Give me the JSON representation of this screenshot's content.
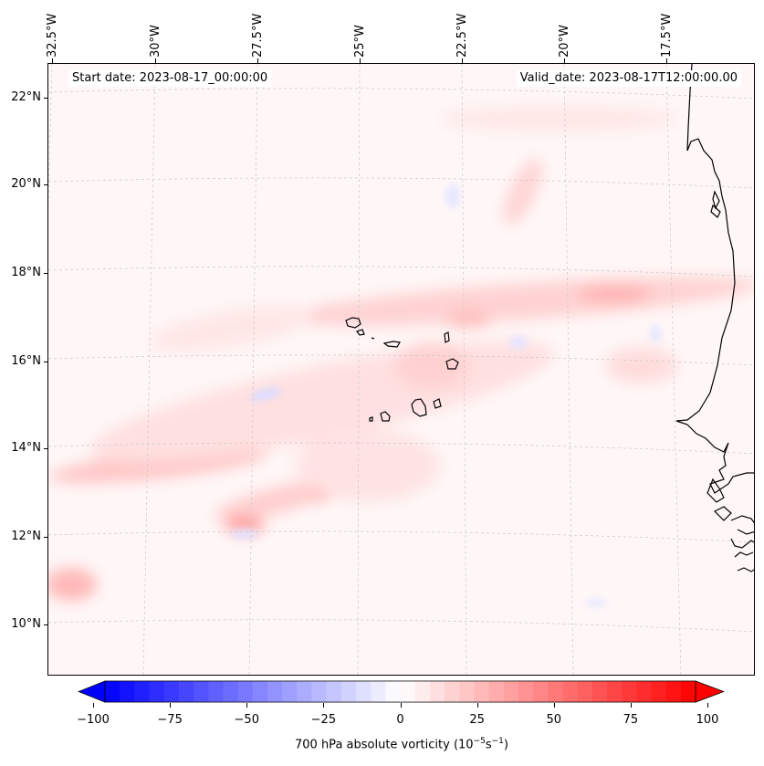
{
  "header": {
    "start_date": "Start date: 2023-08-17_00:00:00",
    "valid_date": "Valid_date: 2023-08-17T12:00:00.00"
  },
  "longitude_labels": [
    "32.5°W",
    "30°W",
    "27.5°W",
    "25°W",
    "22.5°W",
    "20°W",
    "17.5°W"
  ],
  "latitude_labels": [
    "22°N",
    "20°N",
    "18°N",
    "16°N",
    "14°N",
    "12°N",
    "10°N"
  ],
  "colorbar": {
    "ticks": [
      "−100",
      "−75",
      "−50",
      "−25",
      "0",
      "25",
      "50",
      "75",
      "100"
    ],
    "caption_prefix": "700 hPa absolute vorticity (10",
    "caption_exp1": "−5",
    "caption_mid": "s",
    "caption_exp2": "−1",
    "caption_suffix": ")",
    "min": -100,
    "max": 100,
    "colors": {
      "negative": "#0000ff",
      "zero": "#ffffff",
      "positive": "#ff0000"
    }
  },
  "colors": {
    "coastline": "#000000",
    "gridline": "#c8c8c8"
  }
}
